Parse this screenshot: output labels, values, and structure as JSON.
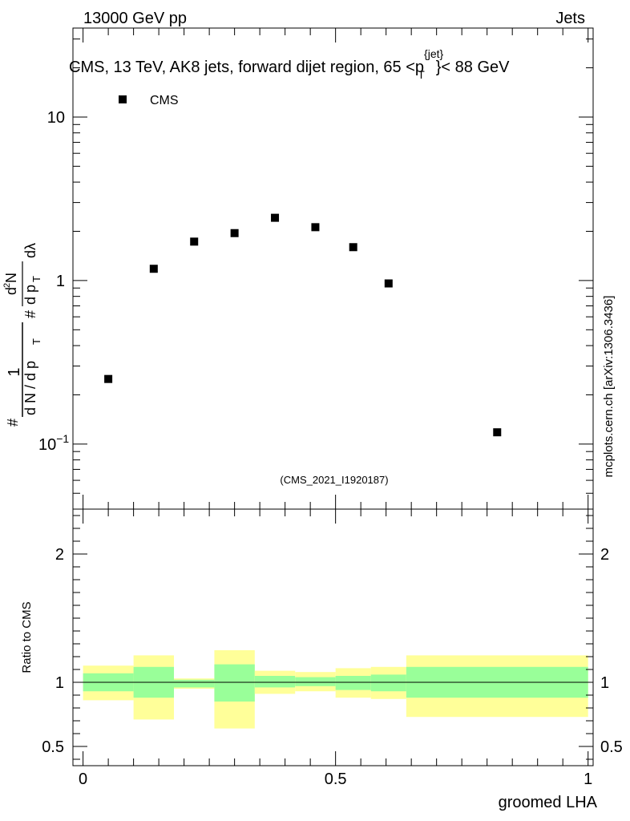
{
  "header": {
    "left_label": "13000 GeV pp",
    "right_label": "Jets"
  },
  "side_label": "mcplots.cern.ch [arXiv:1306.3436]",
  "watermark": "(CMS_2021_I1920187)",
  "colors": {
    "data_marker": "#000000",
    "band_inner": "#99ff99",
    "band_outer": "#ffff99",
    "watermark": "#a0a0a0"
  },
  "chart_data": [
    {
      "type": "scatter",
      "title": "CMS, 13 TeV, AK8 jets, forward dijet region, 65 <p{jet}T}< 88 GeV",
      "title_parts": {
        "before": "CMS, 13 TeV, AK8 jets, forward dijet region, 65 <",
        "p": "p",
        "sup": "{jet}",
        "sub": "T",
        "after": "}< 88 GeV"
      },
      "ylabel": "1/(dN/dpT) d²N/(dpT dλ)",
      "ylabel_parts": {
        "hash1": "#",
        "one": "1",
        "denominator": "d N / d p",
        "t1": "T",
        "hash2": "#",
        "d2n": "d",
        "two": "2",
        "n": "N",
        "dpt": "d p",
        "t2": "T",
        "dlambda": "dλ"
      },
      "yscale": "log",
      "ylim": [
        0.04,
        35
      ],
      "xlim": [
        -0.02,
        1.01
      ],
      "yticks": [
        {
          "value": 10,
          "label": "10"
        },
        {
          "value": 1,
          "label": "1"
        },
        {
          "value": 0.1,
          "label": "10",
          "exp": "−1"
        }
      ],
      "legend": {
        "position": "top-left",
        "label": "CMS"
      },
      "series": [
        {
          "name": "CMS",
          "x": [
            0.05,
            0.14,
            0.22,
            0.3,
            0.38,
            0.46,
            0.535,
            0.605,
            0.82
          ],
          "y": [
            0.25,
            1.18,
            1.73,
            1.95,
            2.42,
            2.12,
            1.6,
            0.96,
            0.118
          ]
        }
      ]
    },
    {
      "type": "area",
      "ylabel": "Ratio to CMS",
      "xlabel": "groomed LHA",
      "yscale": "linear",
      "ylim": [
        0.35,
        2.35
      ],
      "xlim": [
        -0.02,
        1.01
      ],
      "xticks": [
        {
          "value": 0,
          "label": "0"
        },
        {
          "value": 0.5,
          "label": "0.5"
        },
        {
          "value": 1,
          "label": "1"
        }
      ],
      "yticks": [
        {
          "value": 2,
          "label": "2"
        },
        {
          "value": 1,
          "label": "1"
        },
        {
          "value": 0.5,
          "label": "0.5"
        }
      ],
      "reference_line": 1,
      "bins": [
        {
          "lo": 0.0,
          "hi": 0.1,
          "inner": [
            0.93,
            1.07
          ],
          "outer": [
            0.86,
            1.13
          ]
        },
        {
          "lo": 0.1,
          "hi": 0.18,
          "inner": [
            0.88,
            1.12
          ],
          "outer": [
            0.71,
            1.21
          ]
        },
        {
          "lo": 0.18,
          "hi": 0.26,
          "inner": [
            0.96,
            1.02
          ],
          "outer": [
            0.95,
            1.03
          ]
        },
        {
          "lo": 0.26,
          "hi": 0.34,
          "inner": [
            0.85,
            1.14
          ],
          "outer": [
            0.64,
            1.25
          ]
        },
        {
          "lo": 0.34,
          "hi": 0.42,
          "inner": [
            0.96,
            1.05
          ],
          "outer": [
            0.91,
            1.09
          ]
        },
        {
          "lo": 0.42,
          "hi": 0.5,
          "inner": [
            0.97,
            1.04
          ],
          "outer": [
            0.93,
            1.08
          ]
        },
        {
          "lo": 0.5,
          "hi": 0.57,
          "inner": [
            0.94,
            1.05
          ],
          "outer": [
            0.88,
            1.11
          ]
        },
        {
          "lo": 0.57,
          "hi": 0.64,
          "inner": [
            0.93,
            1.06
          ],
          "outer": [
            0.87,
            1.12
          ]
        },
        {
          "lo": 0.64,
          "hi": 1.0,
          "inner": [
            0.88,
            1.12
          ],
          "outer": [
            0.73,
            1.21
          ]
        }
      ]
    }
  ]
}
